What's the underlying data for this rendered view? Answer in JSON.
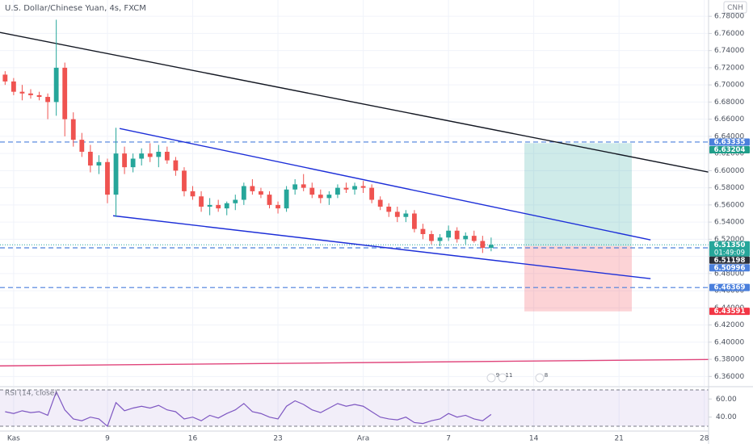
{
  "header": {
    "title": "U.S. Dollar/Chinese Yuan, 4s, FXCM",
    "currency_button": "CNH"
  },
  "chart_data": [
    {
      "type": "candlestick",
      "x": [
        -1,
        0,
        1,
        2,
        3,
        4,
        5,
        6,
        7,
        8,
        9,
        10,
        11,
        12,
        13,
        14,
        15,
        16,
        17,
        18,
        19,
        20,
        21,
        22,
        23,
        24,
        25,
        26,
        27,
        28,
        29,
        30,
        31,
        32,
        33,
        34,
        35,
        36,
        37,
        38,
        39,
        40,
        41,
        42,
        43,
        44,
        45,
        46,
        47,
        48,
        49,
        50,
        51,
        52,
        53,
        54,
        55,
        56
      ],
      "open": [
        6.712,
        6.704,
        6.692,
        6.69,
        6.688,
        6.686,
        6.68,
        6.72,
        6.66,
        6.636,
        6.622,
        6.606,
        6.61,
        6.572,
        6.62,
        6.604,
        6.614,
        6.62,
        6.616,
        6.622,
        6.612,
        6.6,
        6.576,
        6.57,
        6.558,
        6.56,
        6.556,
        6.562,
        6.566,
        6.582,
        6.576,
        6.572,
        6.56,
        6.556,
        6.578,
        6.584,
        6.58,
        6.572,
        6.568,
        6.572,
        6.58,
        6.578,
        6.582,
        6.58,
        6.566,
        6.558,
        6.552,
        6.546,
        6.55,
        6.532,
        6.526,
        6.518,
        6.522,
        6.53,
        6.52,
        6.524,
        6.518,
        6.51
      ],
      "high": [
        6.716,
        6.708,
        6.7,
        6.695,
        6.692,
        6.69,
        6.776,
        6.726,
        6.668,
        6.644,
        6.63,
        6.618,
        6.614,
        6.65,
        6.628,
        6.62,
        6.626,
        6.632,
        6.63,
        6.628,
        6.616,
        6.604,
        6.582,
        6.576,
        6.568,
        6.566,
        6.564,
        6.572,
        6.586,
        6.59,
        6.58,
        6.576,
        6.564,
        6.582,
        6.59,
        6.596,
        6.586,
        6.578,
        6.576,
        6.584,
        6.586,
        6.586,
        6.588,
        6.584,
        6.57,
        6.562,
        6.558,
        6.554,
        6.554,
        6.538,
        6.53,
        6.526,
        6.536,
        6.534,
        6.528,
        6.53,
        6.524,
        6.522
      ],
      "low": [
        6.7,
        6.688,
        6.682,
        6.684,
        6.682,
        6.66,
        6.664,
        6.64,
        6.628,
        6.616,
        6.598,
        6.596,
        6.562,
        6.546,
        6.596,
        6.598,
        6.606,
        6.61,
        6.604,
        6.608,
        6.594,
        6.57,
        6.566,
        6.552,
        6.548,
        6.552,
        6.548,
        6.554,
        6.56,
        6.572,
        6.568,
        6.556,
        6.55,
        6.552,
        6.572,
        6.576,
        6.568,
        6.562,
        6.56,
        6.568,
        6.574,
        6.572,
        6.574,
        6.562,
        6.554,
        6.546,
        6.54,
        6.54,
        6.528,
        6.52,
        6.514,
        6.512,
        6.518,
        6.516,
        6.514,
        6.516,
        6.504,
        6.506
      ],
      "close": [
        6.704,
        6.692,
        6.69,
        6.688,
        6.686,
        6.68,
        6.72,
        6.66,
        6.636,
        6.622,
        6.606,
        6.61,
        6.572,
        6.62,
        6.604,
        6.614,
        6.62,
        6.616,
        6.622,
        6.612,
        6.6,
        6.576,
        6.57,
        6.558,
        6.56,
        6.556,
        6.562,
        6.566,
        6.582,
        6.576,
        6.572,
        6.56,
        6.556,
        6.578,
        6.584,
        6.58,
        6.572,
        6.568,
        6.572,
        6.58,
        6.578,
        6.582,
        6.58,
        6.566,
        6.558,
        6.552,
        6.546,
        6.55,
        6.532,
        6.526,
        6.518,
        6.522,
        6.53,
        6.52,
        6.524,
        6.518,
        6.51,
        6.5135
      ],
      "up_color": "#26a69a",
      "down_color": "#ef5350",
      "xlim": [
        -1.6,
        81.5
      ],
      "xticks": [
        {
          "value": 0,
          "label": "Kas"
        },
        {
          "value": 11,
          "label": "9"
        },
        {
          "value": 21,
          "label": "16"
        },
        {
          "value": 31,
          "label": "23"
        },
        {
          "value": 41,
          "label": "Ara"
        },
        {
          "value": 51,
          "label": "7"
        },
        {
          "value": 61,
          "label": "14"
        },
        {
          "value": 71,
          "label": "21"
        },
        {
          "value": 81,
          "label": "28"
        }
      ],
      "ylim": [
        6.349,
        6.799
      ],
      "yticks": [
        {
          "value": 6.36,
          "label": "6.36000"
        },
        {
          "value": 6.38,
          "label": "6.38000"
        },
        {
          "value": 6.4,
          "label": "6.40000"
        },
        {
          "value": 6.42,
          "label": "6.42000"
        },
        {
          "value": 6.44,
          "label": "6.44000"
        },
        {
          "value": 6.46,
          "label": "6.46000"
        },
        {
          "value": 6.48,
          "label": "6.48000"
        },
        {
          "value": 6.5,
          "label": "6.50000"
        },
        {
          "value": 6.52,
          "label": "6.52000"
        },
        {
          "value": 6.54,
          "label": "6.54000"
        },
        {
          "value": 6.56,
          "label": "6.56000"
        },
        {
          "value": 6.58,
          "label": "6.58000"
        },
        {
          "value": 6.6,
          "label": "6.60000"
        },
        {
          "value": 6.62,
          "label": "6.62000"
        },
        {
          "value": 6.64,
          "label": "6.64000"
        },
        {
          "value": 6.66,
          "label": "6.66000"
        },
        {
          "value": 6.68,
          "label": "6.68000"
        },
        {
          "value": 6.7,
          "label": "6.70000"
        },
        {
          "value": 6.72,
          "label": "6.72000"
        },
        {
          "value": 6.74,
          "label": "6.74000"
        },
        {
          "value": 6.76,
          "label": "6.76000"
        },
        {
          "value": 6.78,
          "label": "6.78000"
        }
      ],
      "grid": true,
      "lines": [
        {
          "color": "#131722",
          "x": [
            -1.6,
            81.5
          ],
          "y": [
            6.7612,
            6.5983
          ]
        },
        {
          "color": "#1c2ed8",
          "x": [
            12.43,
            74.7
          ],
          "y": [
            6.6491,
            6.5192
          ]
        },
        {
          "color": "#1c2ed8",
          "x": [
            11.67,
            74.7
          ],
          "y": [
            6.5474,
            6.474
          ]
        },
        {
          "color": "#e0457b",
          "x": [
            -1.6,
            81.5
          ],
          "y": [
            6.3723,
            6.3798
          ]
        }
      ],
      "levels": [
        6.63335,
        6.50996,
        6.46369
      ],
      "level_color": "#4a7fdc",
      "last_price": 6.5135,
      "position": {
        "x": [
          59.9,
          72.5
        ],
        "entry": 6.51198,
        "target": 6.63204,
        "stop": 6.43591
      },
      "price_labels": [
        {
          "value": 6.63335,
          "label": "6.63335",
          "color": "#4a7fdc"
        },
        {
          "value": 6.63204,
          "label": "6.63204",
          "color": "#1f9e8a"
        },
        {
          "value": 6.5135,
          "label": "6.51350",
          "color": "#26a69a",
          "sublabel": "01:49:09"
        },
        {
          "value": 6.51198,
          "label": "6.51198",
          "color": "#2a2e39"
        },
        {
          "value": 6.50996,
          "label": "6.50996",
          "color": "#4a7fdc"
        },
        {
          "value": 6.46369,
          "label": "6.46369",
          "color": "#4a7fdc"
        },
        {
          "value": 6.43591,
          "label": "6.43591",
          "color": "#f23645"
        }
      ],
      "event_markers": [
        "9",
        "11",
        "8"
      ]
    },
    {
      "type": "line",
      "title": "RSI (14, close)",
      "x": [
        -1,
        0,
        1,
        2,
        3,
        4,
        5,
        6,
        7,
        8,
        9,
        10,
        11,
        12,
        13,
        14,
        15,
        16,
        17,
        18,
        19,
        20,
        21,
        22,
        23,
        24,
        25,
        26,
        27,
        28,
        29,
        30,
        31,
        32,
        33,
        34,
        35,
        36,
        37,
        38,
        39,
        40,
        41,
        42,
        43,
        44,
        45,
        46,
        47,
        48,
        49,
        50,
        51,
        52,
        53,
        54,
        55,
        56
      ],
      "values": [
        46,
        44,
        47,
        45,
        46,
        42,
        68,
        48,
        38,
        36,
        40,
        38,
        30,
        56,
        47,
        50,
        52,
        50,
        53,
        48,
        46,
        38,
        40,
        36,
        42,
        39,
        44,
        48,
        55,
        46,
        44,
        40,
        38,
        52,
        58,
        54,
        48,
        45,
        50,
        55,
        52,
        54,
        52,
        46,
        40,
        38,
        37,
        40,
        34,
        33,
        36,
        38,
        44,
        40,
        42,
        38,
        36,
        43
      ],
      "color": "#7e57c2",
      "ylim": [
        25.5,
        72.7
      ],
      "yticks": [
        {
          "value": 60,
          "label": "60.00"
        },
        {
          "value": 40,
          "label": "40.00"
        }
      ],
      "bands": [
        30,
        70
      ]
    }
  ]
}
